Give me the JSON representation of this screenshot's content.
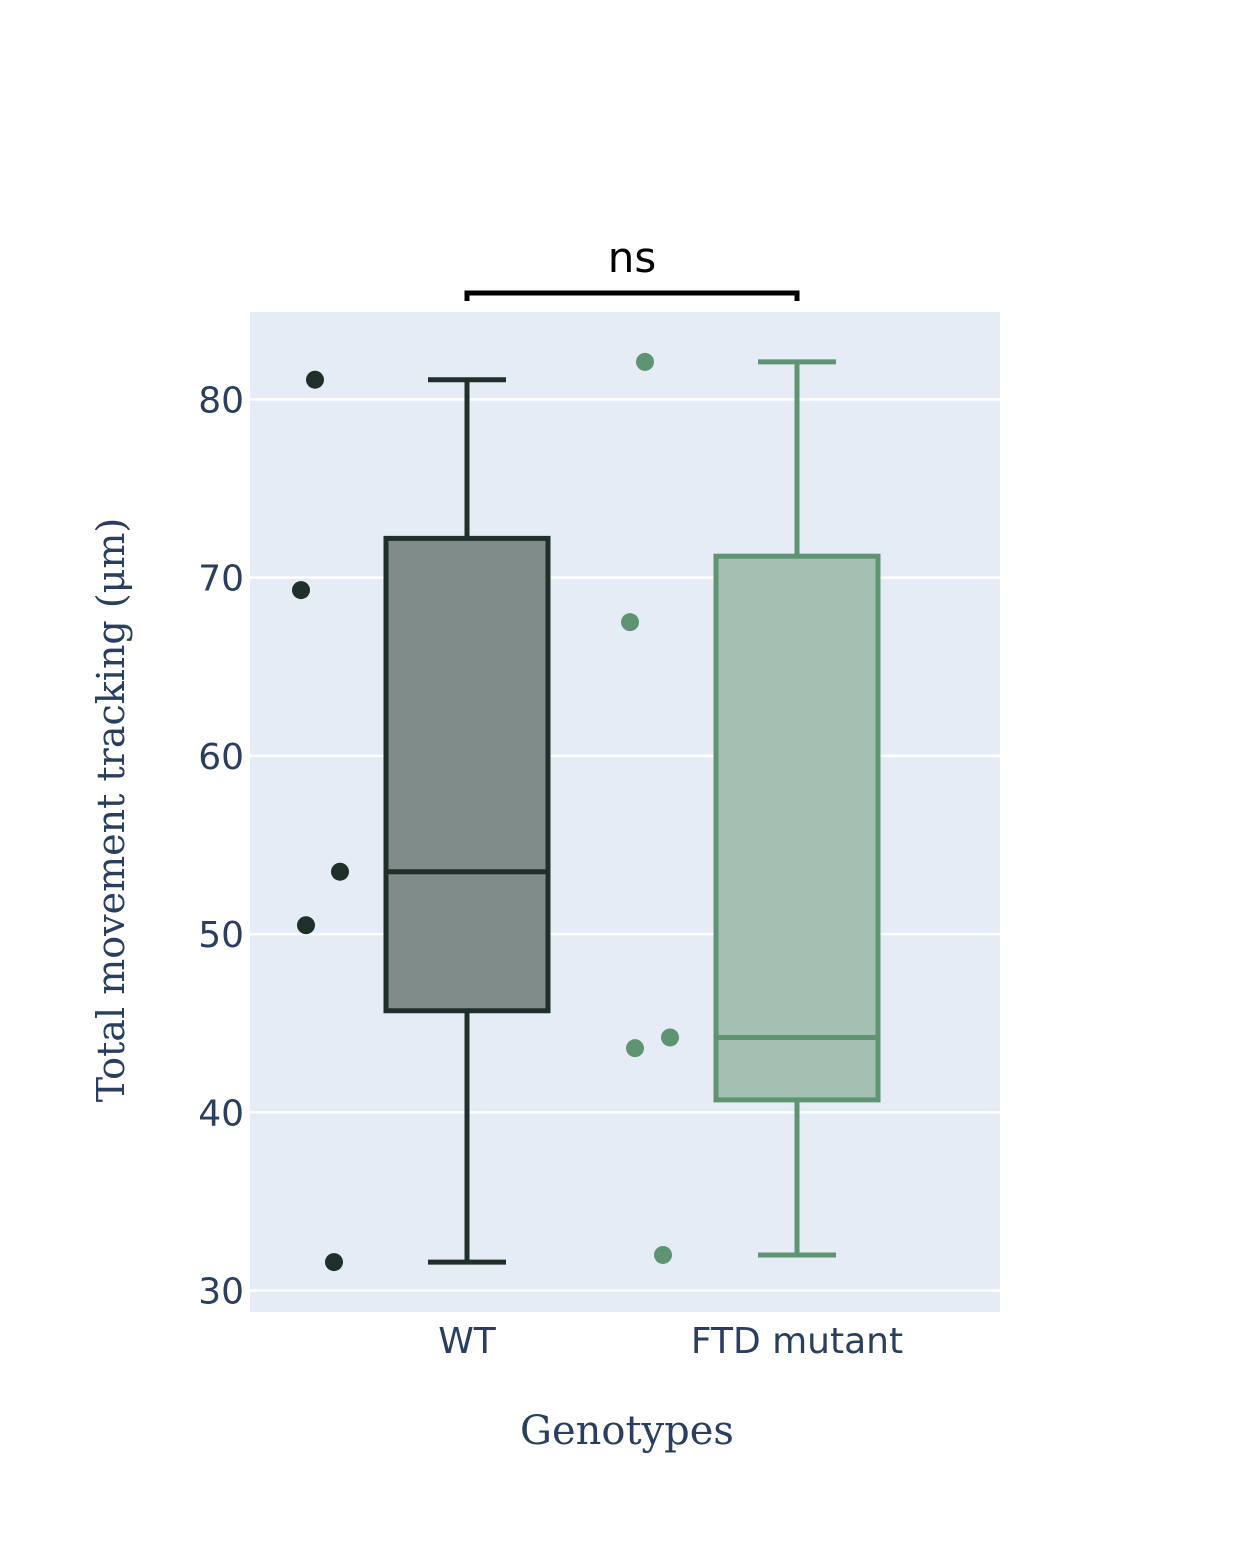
{
  "chart_data": {
    "type": "box",
    "title": "",
    "xlabel": "Genotypes",
    "ylabel": "Total movement tracking (μm)",
    "categories": [
      "WT",
      "FTD mutant"
    ],
    "ylim": [
      28.8,
      84.9
    ],
    "yticks": [
      30,
      40,
      50,
      60,
      70,
      80
    ],
    "grid": true,
    "legend": "none",
    "plot_background": "#e5ecf6",
    "series": [
      {
        "category": "WT",
        "color": "#1f2f29",
        "fill": "#7f8c89",
        "whisker_low": 31.6,
        "q1": 45.7,
        "median": 53.5,
        "q3": 72.2,
        "whisker_high": 81.1,
        "points": [
          81.1,
          69.3,
          53.5,
          50.5,
          31.6
        ]
      },
      {
        "category": "FTD mutant",
        "color": "#5f9473",
        "fill": "#a3c0b2",
        "whisker_low": 32.0,
        "q1": 40.7,
        "median": 44.2,
        "q3": 71.2,
        "whisker_high": 82.1,
        "points": [
          82.1,
          67.5,
          44.2,
          43.6,
          32.0
        ]
      }
    ],
    "annotations": [
      {
        "text": "ns",
        "from": "WT",
        "to": "FTD mutant"
      }
    ]
  }
}
